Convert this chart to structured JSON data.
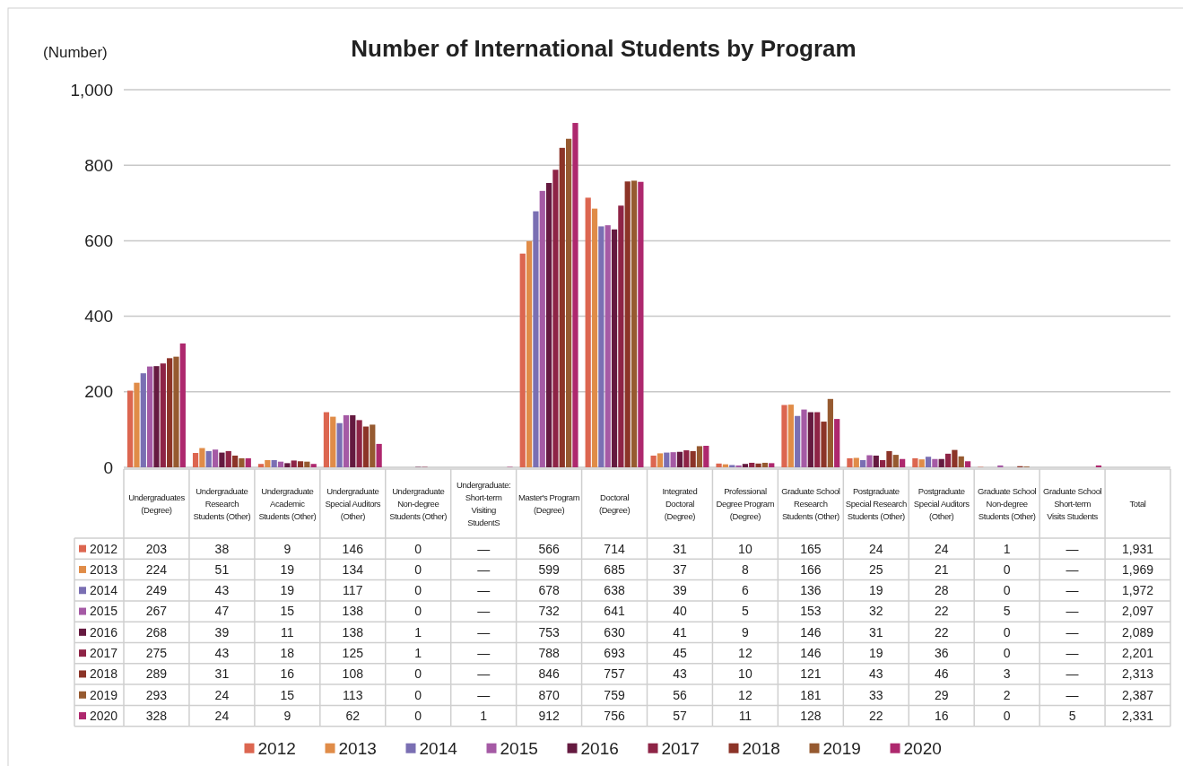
{
  "chart_data": {
    "type": "bar",
    "title": "Number of International Students by Program",
    "ylabel": "(Number)",
    "categories": [
      "Undergraduates (Degree)",
      "Undergraduate Research Students (Other)",
      "Undergraduate Academic Students (Other)",
      "Undergraduate Special Auditors (Other)",
      "Undergraduate Non-degree Students (Other)",
      "Undergraduate: Short-term Visiting StudentS",
      "Master's Program (Degree)",
      "Doctoral (Degree)",
      "Integrated Doctoral (Degree)",
      "Professional Degree Program (Degree)",
      "Graduate School Research Students (Other)",
      "Postgraduate Special Research Students (Other)",
      "Postgraduate Special Auditors (Other)",
      "Graduate School Non-degree Students (Other)",
      "Graduate School Short-term Visits Students",
      "Total"
    ],
    "series": [
      {
        "name": "2012",
        "color": "#dc6650",
        "values": [
          203,
          38,
          9,
          146,
          0,
          null,
          566,
          714,
          31,
          10,
          165,
          24,
          24,
          1,
          null,
          null
        ],
        "value_labels": [
          "203",
          "38",
          "9",
          "146",
          "0",
          "—",
          "566",
          "714",
          "31",
          "10",
          "165",
          "24",
          "24",
          "1",
          "—",
          "1,931"
        ]
      },
      {
        "name": "2013",
        "color": "#e08c48",
        "values": [
          224,
          51,
          19,
          134,
          0,
          null,
          599,
          685,
          37,
          8,
          166,
          25,
          21,
          0,
          null,
          null
        ],
        "value_labels": [
          "224",
          "51",
          "19",
          "134",
          "0",
          "—",
          "599",
          "685",
          "37",
          "8",
          "166",
          "25",
          "21",
          "0",
          "—",
          "1,969"
        ]
      },
      {
        "name": "2014",
        "color": "#7a6fb3",
        "values": [
          249,
          43,
          19,
          117,
          0,
          null,
          678,
          638,
          39,
          6,
          136,
          19,
          28,
          0,
          null,
          null
        ],
        "value_labels": [
          "249",
          "43",
          "19",
          "117",
          "0",
          "—",
          "678",
          "638",
          "39",
          "6",
          "136",
          "19",
          "28",
          "0",
          "—",
          "1,972"
        ]
      },
      {
        "name": "2015",
        "color": "#a55aa5",
        "values": [
          267,
          47,
          15,
          138,
          0,
          null,
          732,
          641,
          40,
          5,
          153,
          32,
          22,
          5,
          null,
          null
        ],
        "value_labels": [
          "267",
          "47",
          "15",
          "138",
          "0",
          "—",
          "732",
          "641",
          "40",
          "5",
          "153",
          "32",
          "22",
          "5",
          "—",
          "2,097"
        ]
      },
      {
        "name": "2016",
        "color": "#651a40",
        "values": [
          268,
          39,
          11,
          138,
          1,
          null,
          753,
          630,
          41,
          9,
          146,
          31,
          22,
          0,
          null,
          null
        ],
        "value_labels": [
          "268",
          "39",
          "11",
          "138",
          "1",
          "—",
          "753",
          "630",
          "41",
          "9",
          "146",
          "31",
          "22",
          "0",
          "—",
          "2,089"
        ]
      },
      {
        "name": "2017",
        "color": "#8e2446",
        "values": [
          275,
          43,
          18,
          125,
          1,
          null,
          788,
          693,
          45,
          12,
          146,
          19,
          36,
          0,
          null,
          null
        ],
        "value_labels": [
          "275",
          "43",
          "18",
          "125",
          "1",
          "—",
          "788",
          "693",
          "45",
          "12",
          "146",
          "19",
          "36",
          "0",
          "—",
          "2,201"
        ]
      },
      {
        "name": "2018",
        "color": "#8c3428",
        "values": [
          289,
          31,
          16,
          108,
          0,
          null,
          846,
          757,
          43,
          10,
          121,
          43,
          46,
          3,
          null,
          null
        ],
        "value_labels": [
          "289",
          "31",
          "16",
          "108",
          "0",
          "—",
          "846",
          "757",
          "43",
          "10",
          "121",
          "43",
          "46",
          "3",
          "—",
          "2,313"
        ]
      },
      {
        "name": "2019",
        "color": "#965a30",
        "values": [
          293,
          24,
          15,
          113,
          0,
          null,
          870,
          759,
          56,
          12,
          181,
          33,
          29,
          2,
          null,
          null
        ],
        "value_labels": [
          "293",
          "24",
          "15",
          "113",
          "0",
          "—",
          "870",
          "759",
          "56",
          "12",
          "181",
          "33",
          "29",
          "2",
          "—",
          "2,387"
        ]
      },
      {
        "name": "2020",
        "color": "#ae286e",
        "values": [
          328,
          24,
          9,
          62,
          0,
          1,
          912,
          756,
          57,
          11,
          128,
          22,
          16,
          0,
          5,
          null
        ],
        "value_labels": [
          "328",
          "24",
          "9",
          "62",
          "0",
          "1",
          "912",
          "756",
          "57",
          "11",
          "128",
          "22",
          "16",
          "0",
          "5",
          "2,331"
        ]
      }
    ],
    "ylim": [
      0,
      1000
    ],
    "yticks": [
      0,
      200,
      400,
      600,
      800,
      {
        "value": 1000,
        "label": "1,000"
      }
    ],
    "grid": "y",
    "legend": "bottom"
  }
}
